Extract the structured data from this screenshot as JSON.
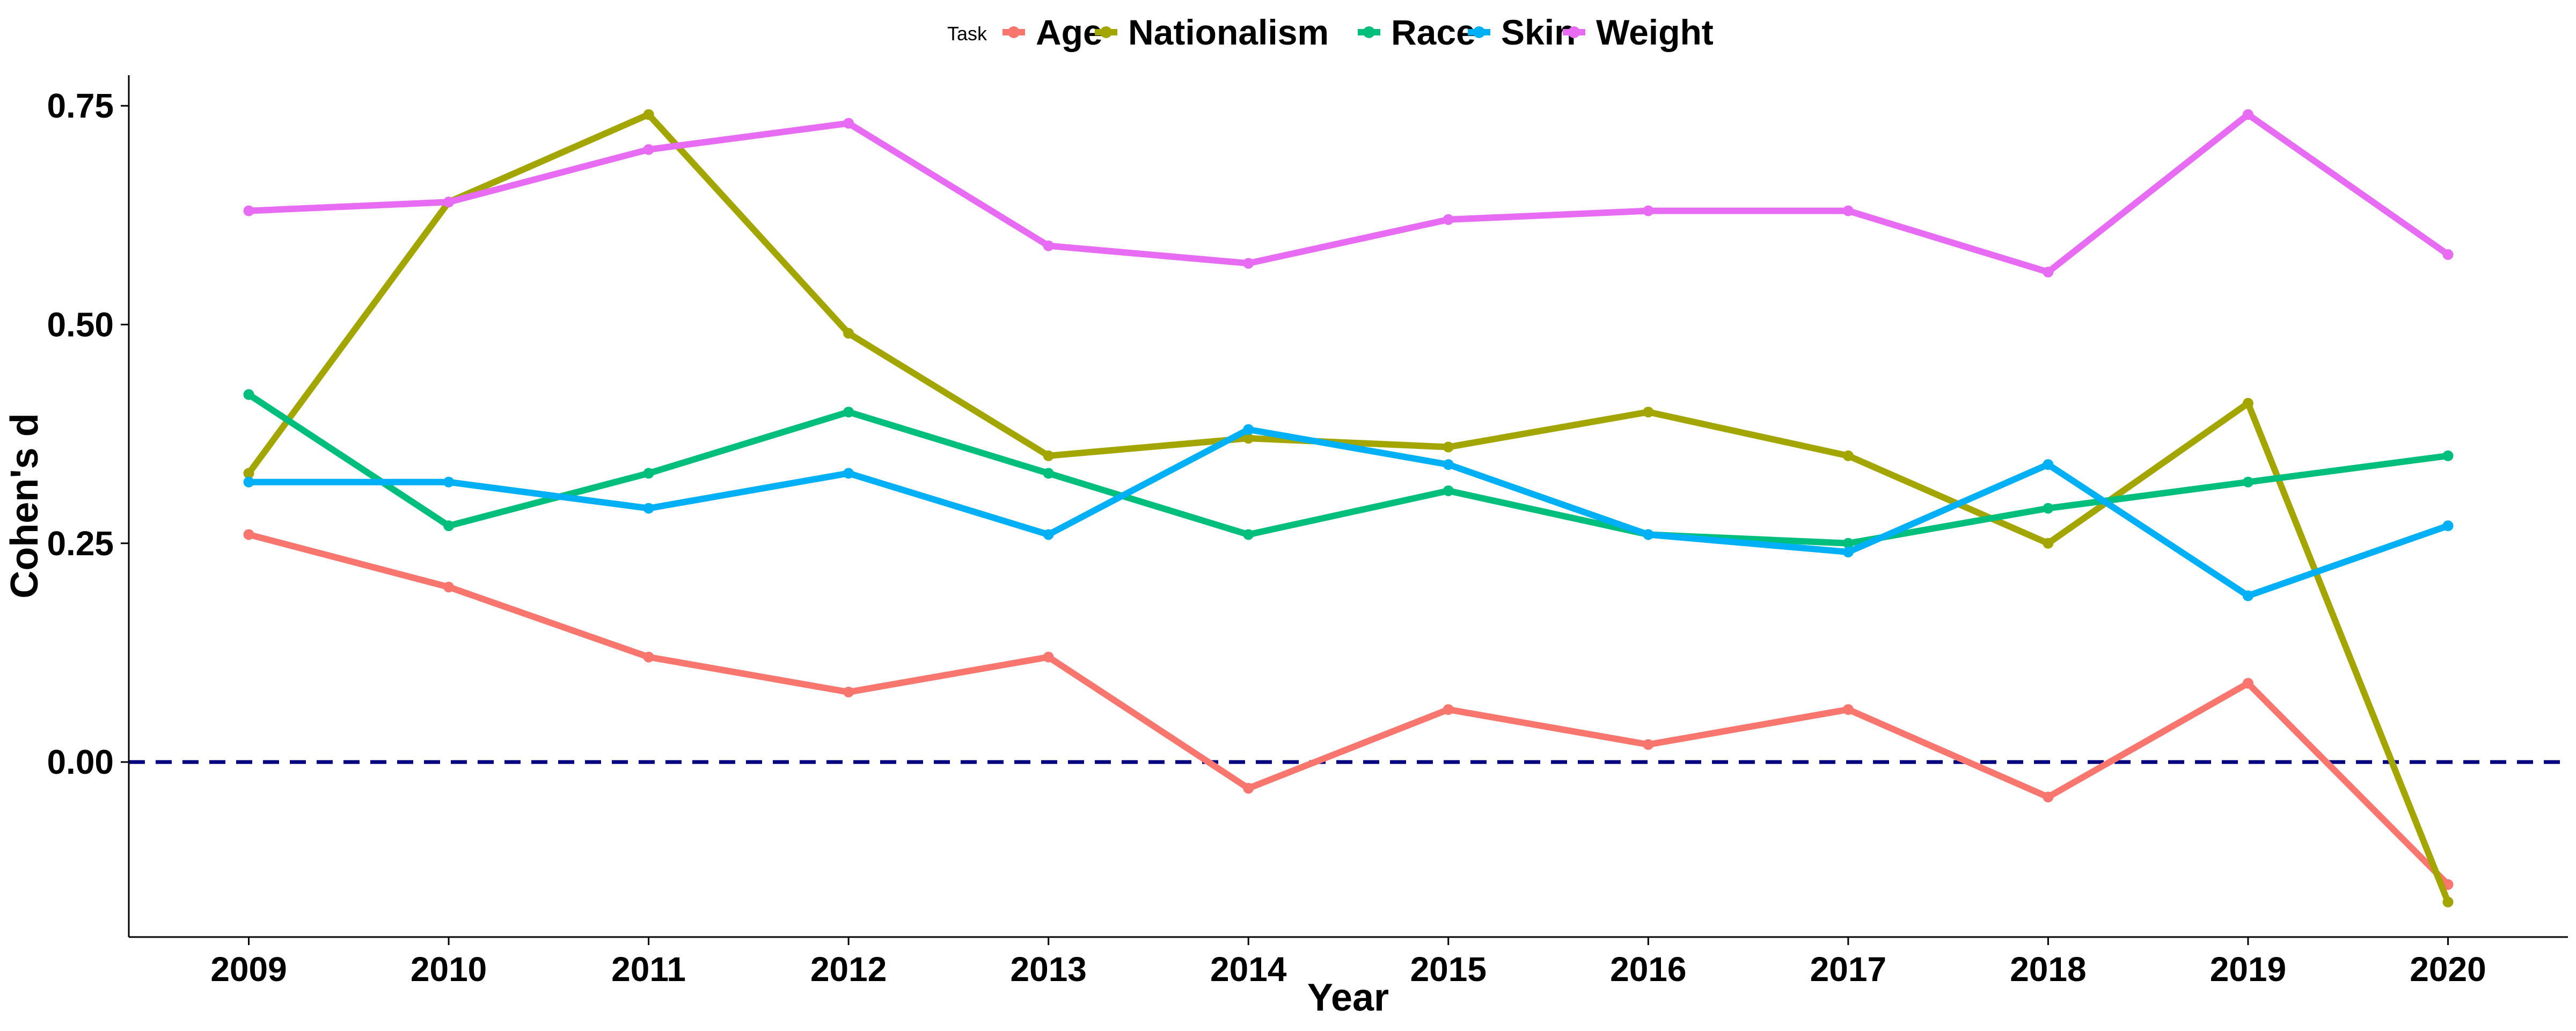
{
  "chart_data": {
    "type": "line",
    "title": "",
    "xlabel": "Year",
    "ylabel": "Cohen's d",
    "legend_title": "Task",
    "legend_position": "top",
    "grid": false,
    "x": [
      2009,
      2010,
      2011,
      2012,
      2013,
      2014,
      2015,
      2016,
      2017,
      2018,
      2019,
      2020
    ],
    "x_tick_labels": [
      "2009",
      "2010",
      "2011",
      "2012",
      "2013",
      "2014",
      "2015",
      "2016",
      "2017",
      "2018",
      "2019",
      "2020"
    ],
    "xlim": [
      2008.4,
      2020.6
    ],
    "ylim": [
      -0.2,
      0.785
    ],
    "y_ticks": [
      0.0,
      0.25,
      0.5,
      0.75
    ],
    "y_tick_labels": [
      "0.00",
      "0.25",
      "0.50",
      "0.75"
    ],
    "reference_line": {
      "y": 0,
      "style": "dashed",
      "color": "#000080"
    },
    "series": [
      {
        "name": "Age",
        "color": "#F8766D",
        "values": [
          0.26,
          0.2,
          0.12,
          0.08,
          0.12,
          -0.03,
          0.06,
          0.02,
          0.06,
          -0.04,
          0.09,
          -0.14
        ]
      },
      {
        "name": "Nationalism",
        "color": "#A3A500",
        "values": [
          0.33,
          0.64,
          0.74,
          0.49,
          0.35,
          0.37,
          0.36,
          0.4,
          0.35,
          0.25,
          0.41,
          -0.16
        ]
      },
      {
        "name": "Race",
        "color": "#00BF7D",
        "values": [
          0.42,
          0.27,
          0.33,
          0.4,
          0.33,
          0.26,
          0.31,
          0.26,
          0.25,
          0.29,
          0.32,
          0.35
        ]
      },
      {
        "name": "Skin",
        "color": "#00B0F6",
        "values": [
          0.32,
          0.32,
          0.29,
          0.33,
          0.26,
          0.38,
          0.34,
          0.26,
          0.24,
          0.34,
          0.19,
          0.27
        ]
      },
      {
        "name": "Weight",
        "color": "#E76BF3",
        "values": [
          0.63,
          0.64,
          0.7,
          0.73,
          0.59,
          0.57,
          0.62,
          0.63,
          0.63,
          0.56,
          0.74,
          0.58
        ]
      }
    ]
  }
}
